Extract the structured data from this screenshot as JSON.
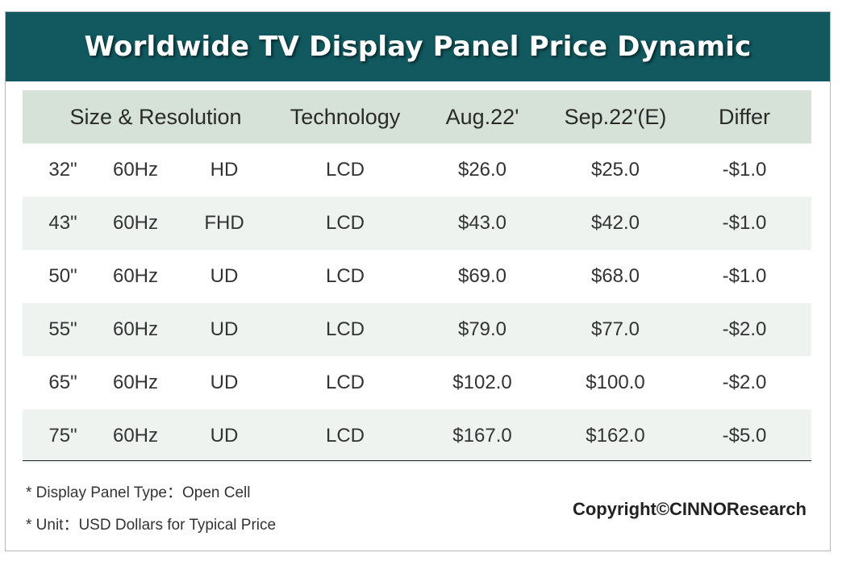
{
  "chart_data": {
    "type": "table",
    "title": "Worldwide TV Display Panel Price Dynamic",
    "columns": [
      "Size & Resolution",
      "Technology",
      "Aug.22'",
      "Sep.22'(E)",
      "Differ"
    ],
    "rows": [
      {
        "size": "32\"",
        "hz": "60Hz",
        "res": "HD",
        "tech": "LCD",
        "aug": "$26.0",
        "sep": "$25.0",
        "diff": "-$1.0"
      },
      {
        "size": "43\"",
        "hz": "60Hz",
        "res": "FHD",
        "tech": "LCD",
        "aug": "$43.0",
        "sep": "$42.0",
        "diff": "-$1.0"
      },
      {
        "size": "50\"",
        "hz": "60Hz",
        "res": "UD",
        "tech": "LCD",
        "aug": "$69.0",
        "sep": "$68.0",
        "diff": "-$1.0"
      },
      {
        "size": "55\"",
        "hz": "60Hz",
        "res": "UD",
        "tech": "LCD",
        "aug": "$79.0",
        "sep": "$77.0",
        "diff": "-$2.0"
      },
      {
        "size": "65\"",
        "hz": "60Hz",
        "res": "UD",
        "tech": "LCD",
        "aug": "$102.0",
        "sep": "$100.0",
        "diff": "-$2.0"
      },
      {
        "size": "75\"",
        "hz": "60Hz",
        "res": "UD",
        "tech": "LCD",
        "aug": "$167.0",
        "sep": "$162.0",
        "diff": "-$5.0"
      }
    ],
    "notes": [
      "* Display Panel Type：Open Cell",
      "* Unit：USD Dollars for Typical Price"
    ],
    "copyright": "Copyright©CINNOResearch"
  },
  "colors": {
    "title_bg": "#11585f",
    "header_bg": "#d6e2d8",
    "alt_row_bg": "#eef3ef"
  }
}
